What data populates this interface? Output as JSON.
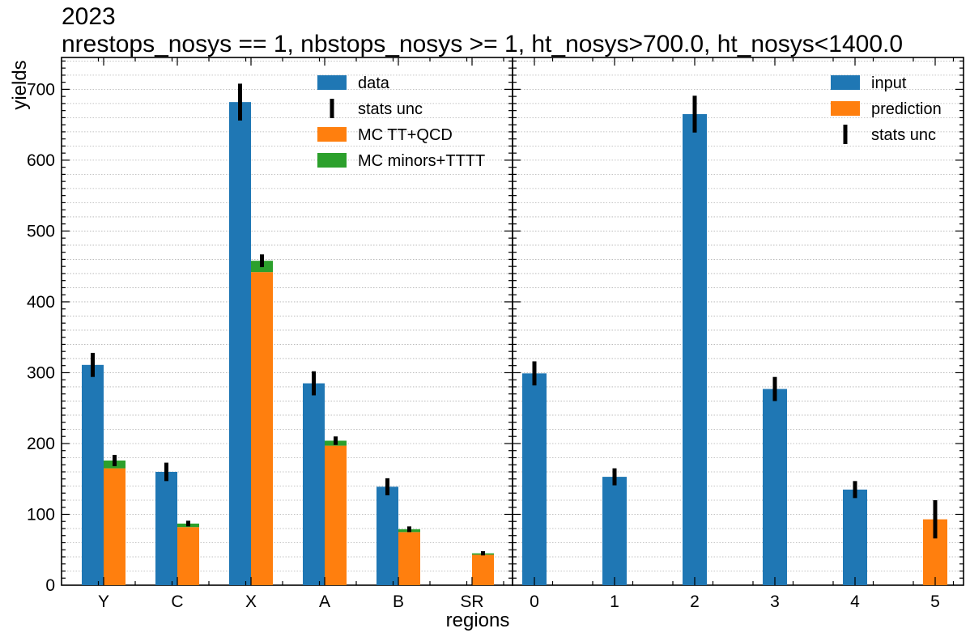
{
  "chart_data": {
    "type": "bar",
    "title_line1": "2023",
    "title_line2": "nrestops_nosys == 1, nbstops_nosys >= 1, ht_nosys>700.0, ht_nosys<1400.0",
    "ylabel": "yields",
    "xlabel": "regions",
    "ylim": [
      0,
      745
    ],
    "yticks": [
      0,
      100,
      200,
      300,
      400,
      500,
      600,
      700
    ],
    "colors": {
      "blue": "#1f77b4",
      "orange": "#ff7f0e",
      "green": "#2ca02c",
      "err": "#000000"
    },
    "panels": [
      {
        "categories": [
          "Y",
          "C",
          "X",
          "A",
          "B",
          "SR"
        ],
        "data": [
          311,
          160,
          682,
          285,
          139,
          null
        ],
        "data_err": [
          17,
          13,
          26,
          17,
          12,
          null
        ],
        "mc_ttqcd": [
          165,
          82,
          442,
          197,
          75,
          43
        ],
        "mc_minors_tttt": [
          11,
          5,
          16,
          7,
          4,
          2
        ],
        "mc_err": [
          8,
          4,
          9,
          6,
          4,
          3
        ],
        "legend": [
          "data",
          "stats unc",
          "MC TT+QCD",
          "MC minors+TTTT"
        ],
        "legend_position": "top-right"
      },
      {
        "categories": [
          "0",
          "1",
          "2",
          "3",
          "4",
          "5"
        ],
        "input": [
          299,
          153,
          665,
          277,
          135,
          null
        ],
        "prediction": [
          null,
          null,
          null,
          null,
          null,
          93
        ],
        "err": [
          17,
          12,
          26,
          17,
          12,
          27
        ],
        "legend": [
          "input",
          "prediction",
          "stats unc"
        ],
        "legend_position": "top-right"
      }
    ]
  }
}
